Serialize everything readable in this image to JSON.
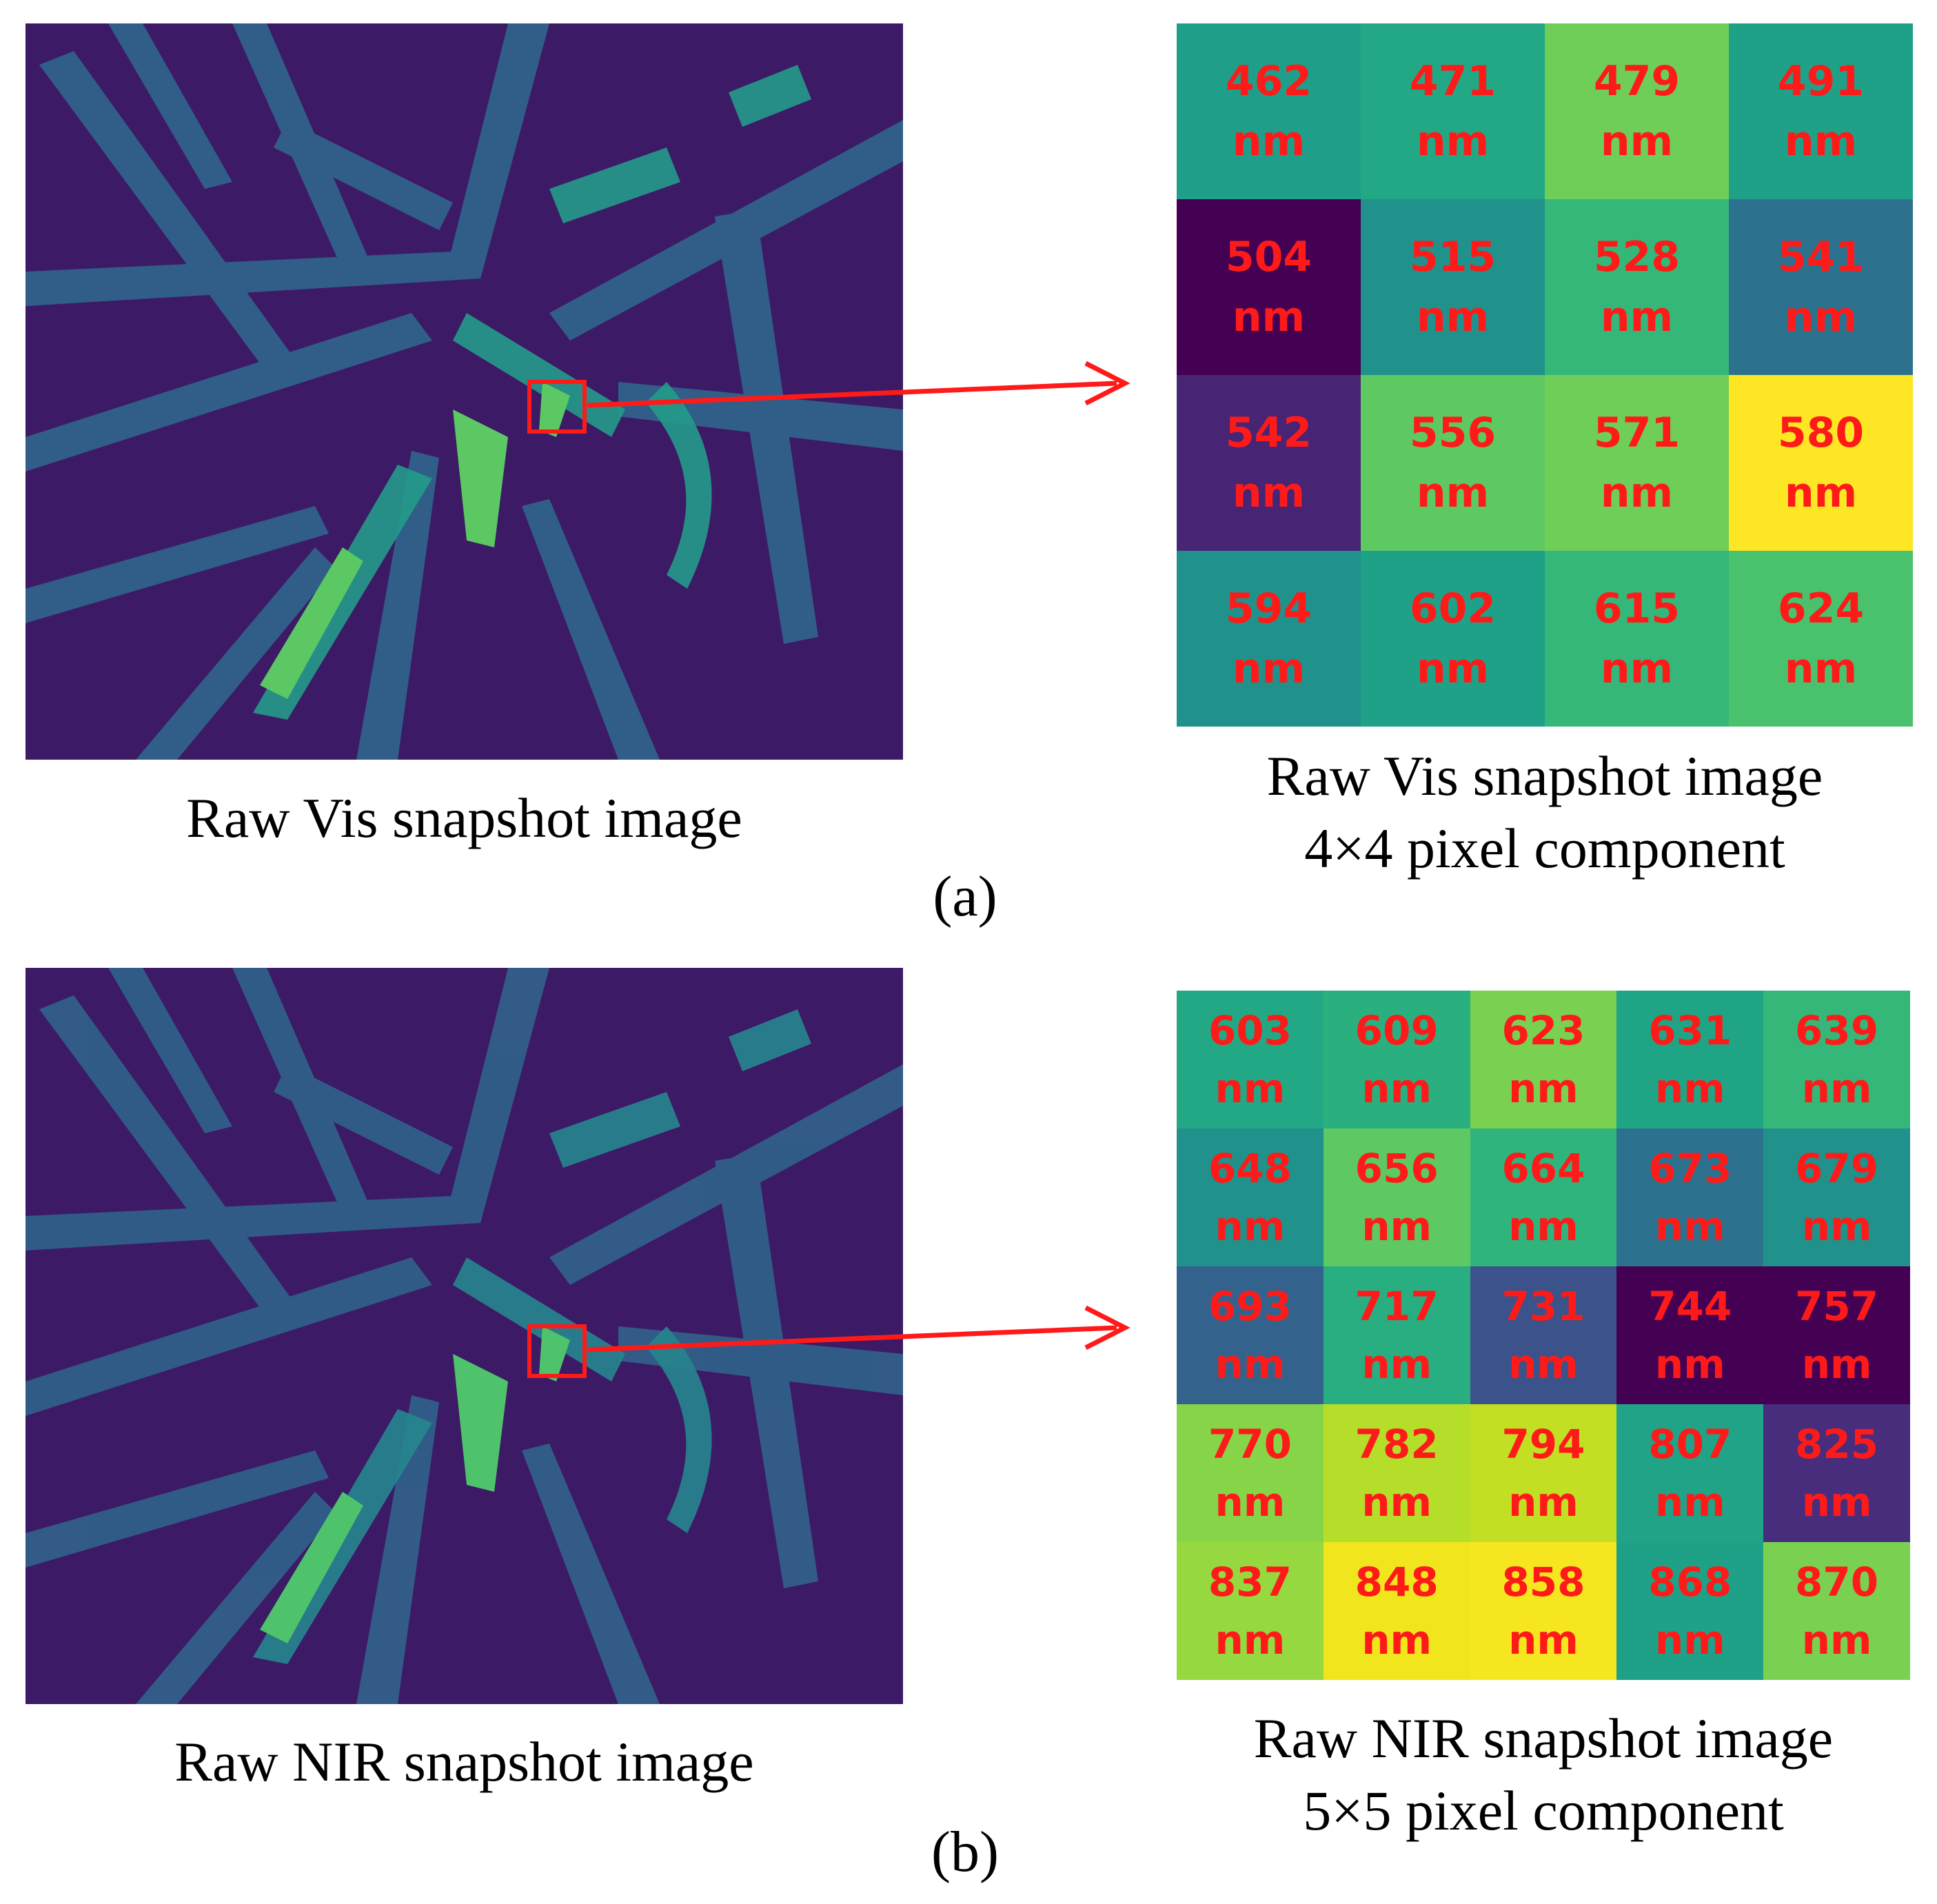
{
  "panels": [
    {
      "label": "(a)",
      "image_caption": "Raw Vis snapshot image",
      "grid_caption_line1": "Raw Vis snapshot image",
      "grid_caption_line2": "4×4 pixel component",
      "unit": "nm",
      "wavelengths": [
        462,
        471,
        479,
        491,
        504,
        515,
        528,
        541,
        542,
        556,
        571,
        580,
        594,
        602,
        615,
        624
      ],
      "cell_colors": [
        "#1f9e89",
        "#22a884",
        "#6ece58",
        "#1fa187",
        "#440154",
        "#21918c",
        "#35b779",
        "#2c728e",
        "#482475",
        "#5ec962",
        "#6ece58",
        "#fde725",
        "#21918c",
        "#1fa187",
        "#35b779",
        "#4ac16d"
      ],
      "image_colors": {
        "background": "#3d1a66",
        "leaf_dim": "#2e6b8e",
        "leaf_mid": "#239b8a",
        "leaf_bright": "#5bc863",
        "marker": "#ff1a1a"
      }
    },
    {
      "label": "(b)",
      "image_caption": "Raw NIR snapshot image",
      "grid_caption_line1": "Raw NIR snapshot image",
      "grid_caption_line2": "5×5 pixel component",
      "unit": "nm",
      "wavelengths": [
        603,
        609,
        623,
        631,
        639,
        648,
        656,
        664,
        673,
        679,
        693,
        717,
        731,
        744,
        757,
        770,
        782,
        794,
        807,
        825,
        837,
        848,
        858,
        868,
        870
      ],
      "cell_colors": [
        "#22a884",
        "#2ab07f",
        "#7ad151",
        "#20a486",
        "#35b779",
        "#21918c",
        "#5ec962",
        "#2fb47c",
        "#2c728e",
        "#21918c",
        "#33638d",
        "#28ae80",
        "#3b528b",
        "#440154",
        "#440154",
        "#86d549",
        "#b5de2b",
        "#c2df23",
        "#20a386",
        "#472d7b",
        "#95d840",
        "#f1e51d",
        "#f6e620",
        "#1fa187",
        "#7ad151"
      ],
      "image_colors": {
        "background": "#3d1a66",
        "leaf_dim": "#30678d",
        "leaf_mid": "#26868e",
        "leaf_bright": "#4ec36b",
        "marker": "#ff1a1a"
      }
    }
  ]
}
